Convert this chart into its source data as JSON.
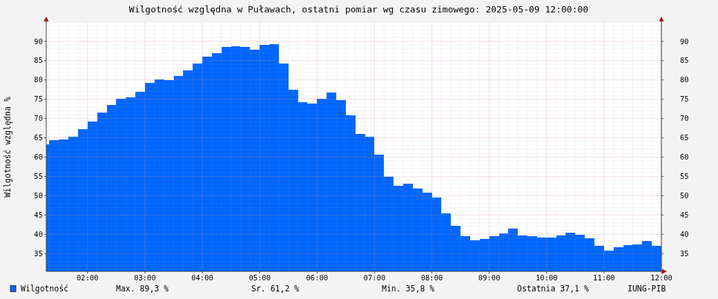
{
  "chart_data": {
    "type": "histogram",
    "title": "Wilgotność względna w Puławach, ostatni pomiar wg czasu zimowego: 2025-05-09 12:00:00",
    "ylabel": "Wilgotność względna %",
    "bins": [
      1.28,
      1.3333,
      1.5,
      1.6667,
      1.8333,
      2,
      2.1667,
      2.3333,
      2.5,
      2.6667,
      2.8333,
      3,
      3.1667,
      3.3333,
      3.5,
      3.6667,
      3.8333,
      4,
      4.1667,
      4.3333,
      4.5,
      4.6667,
      4.8333,
      5,
      5.1667,
      5.3333,
      5.5,
      5.6667,
      5.8333,
      6,
      6.1667,
      6.3333,
      6.5,
      6.6667,
      6.8333,
      7,
      7.1667,
      7.3333,
      7.5,
      7.6667,
      7.8333,
      8,
      8.1667,
      8.3333,
      8.5,
      8.6667,
      8.8333,
      9,
      9.1667,
      9.3333,
      9.5,
      9.6667,
      9.8333,
      10,
      10.1667,
      10.3333,
      10.5,
      10.6667,
      10.8333,
      11,
      11.1667,
      11.3333,
      11.5,
      11.6667,
      11.8333,
      12
    ],
    "series": [
      {
        "name": "Wilgotność",
        "color": "#0066ff",
        "values": [
          63.3,
          64.3,
          64.5,
          65.2,
          67.2,
          69.3,
          71.5,
          73.6,
          75.1,
          75.4,
          77.0,
          79.3,
          80.2,
          80.0,
          81.1,
          82.4,
          84.3,
          86.1,
          87.0,
          88.5,
          88.8,
          88.6,
          87.9,
          89.0,
          89.3,
          84.2,
          77.4,
          74.2,
          73.8,
          75.2,
          76.8,
          74.7,
          70.9,
          66.0,
          65.2,
          60.6,
          54.9,
          52.6,
          53.1,
          51.8,
          50.8,
          49.5,
          45.4,
          42.2,
          39.5,
          38.5,
          38.8,
          39.5,
          40.2,
          41.5,
          39.7,
          39.6,
          39.2,
          39.2,
          39.7,
          40.4,
          39.9,
          39.0,
          37.0,
          35.8,
          36.7,
          37.2,
          37.4,
          38.3,
          37.1
        ]
      }
    ],
    "xlim": [
      1.28,
      12
    ],
    "xticks": [
      {
        "value": 2,
        "label": "02:00"
      },
      {
        "value": 3,
        "label": "03:00"
      },
      {
        "value": 4,
        "label": "04:00"
      },
      {
        "value": 5,
        "label": "05:00"
      },
      {
        "value": 6,
        "label": "06:00"
      },
      {
        "value": 7,
        "label": "07:00"
      },
      {
        "value": 8,
        "label": "08:00"
      },
      {
        "value": 9,
        "label": "09:00"
      },
      {
        "value": 10,
        "label": "10:00"
      },
      {
        "value": 11,
        "label": "11:00"
      },
      {
        "value": 12,
        "label": "12:00"
      }
    ],
    "ylim": [
      30.4,
      94.8
    ],
    "yticks": [
      35,
      40,
      45,
      50,
      55,
      60,
      65,
      70,
      75,
      80,
      85,
      90
    ],
    "y2lim": [
      30.4,
      94.8
    ],
    "y2ticks": [
      35,
      40,
      45,
      50,
      55,
      60,
      65,
      70,
      75,
      80,
      85,
      90
    ],
    "grid": true,
    "legend": "bottom",
    "annotations": [
      "Max. 89,3 %",
      "Sr. 61,2 %",
      "Min. 35,8 %",
      "Ostatnia 37,1 %",
      "IUNG-PIB"
    ]
  }
}
